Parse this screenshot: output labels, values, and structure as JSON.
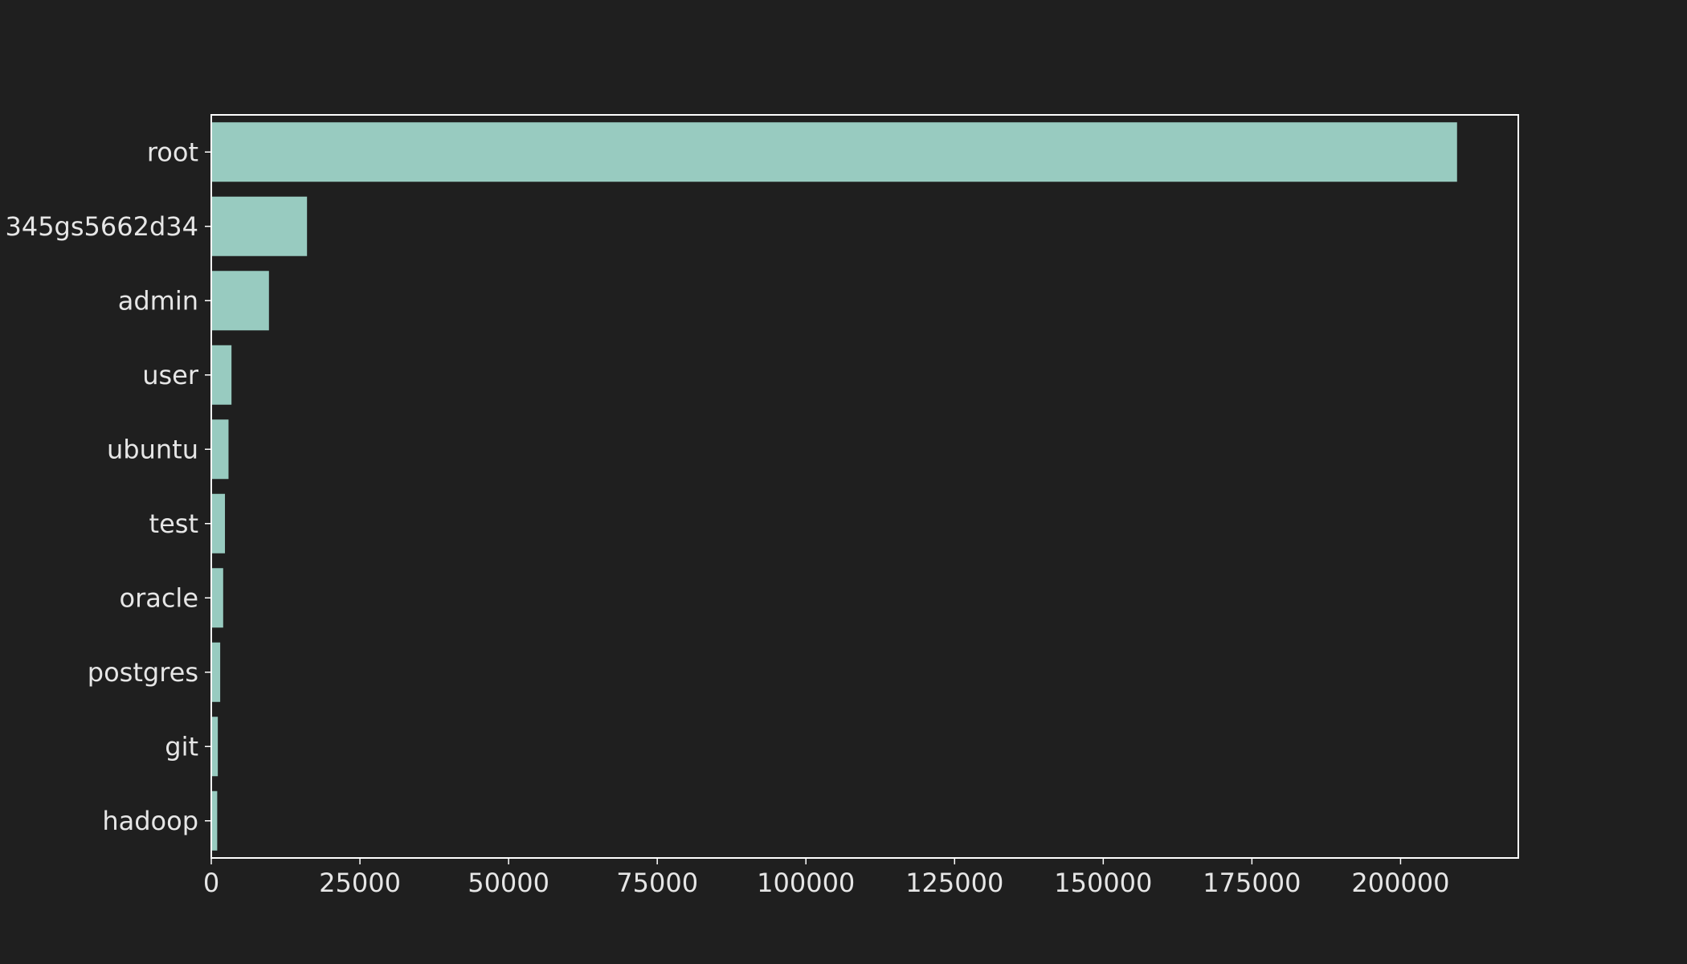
{
  "colors": {
    "background": "#1f1f1f",
    "bar": "#98cbc0",
    "axis": "#ffffff",
    "text": "#e6e6e6"
  },
  "chart_data": {
    "type": "bar",
    "orientation": "horizontal",
    "title": "",
    "xlabel": "",
    "ylabel": "",
    "categories": [
      "root",
      "345gs5662d34",
      "admin",
      "user",
      "ubuntu",
      "test",
      "oracle",
      "postgres",
      "git",
      "hadoop"
    ],
    "values": [
      209500,
      16100,
      9700,
      3400,
      2900,
      2300,
      2000,
      1500,
      1100,
      1000
    ],
    "xlim": [
      0,
      219800
    ],
    "xticks": [
      0,
      25000,
      50000,
      75000,
      100000,
      125000,
      150000,
      175000,
      200000
    ],
    "xtick_labels": [
      "0",
      "25000",
      "50000",
      "75000",
      "100000",
      "125000",
      "150000",
      "175000",
      "200000"
    ],
    "grid": false,
    "legend": "none"
  }
}
